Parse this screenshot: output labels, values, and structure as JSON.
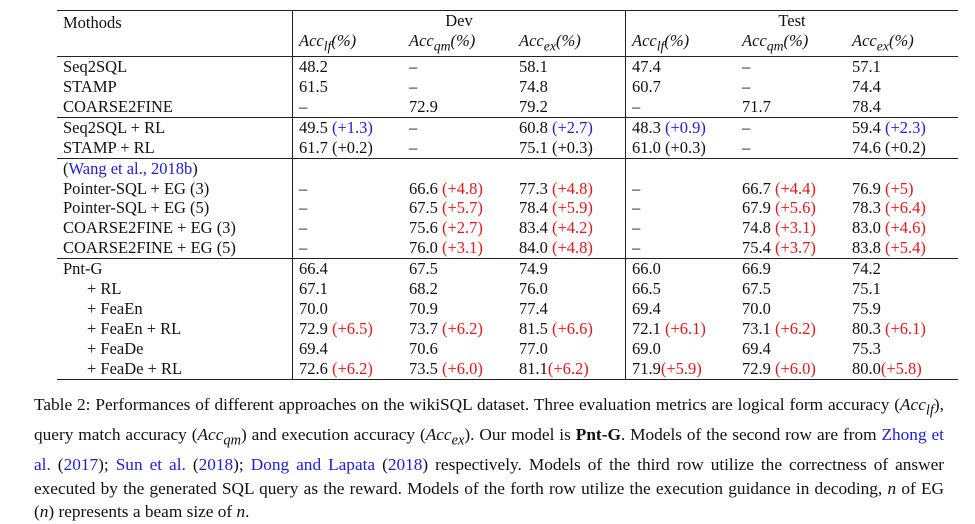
{
  "table": {
    "header": {
      "methods": "Mothods",
      "group_dev": "Dev",
      "group_test": "Test",
      "sub": [
        "Acc_lf(%)",
        "Acc_qm(%)",
        "Acc_ex(%)"
      ],
      "sub_parts": [
        {
          "base": "Acc",
          "sub": "lf",
          "suffix": "(%)"
        },
        {
          "base": "Acc",
          "sub": "qm",
          "suffix": "(%)"
        },
        {
          "base": "Acc",
          "sub": "ex",
          "suffix": "(%)"
        }
      ]
    },
    "rows": [
      {
        "method": "Seq2SQL",
        "cells": [
          {
            "v": "48.2"
          },
          {
            "v": "–"
          },
          {
            "v": "58.1"
          },
          {
            "v": "47.4"
          },
          {
            "v": "–"
          },
          {
            "v": "57.1"
          }
        ]
      },
      {
        "method": "STAMP",
        "cells": [
          {
            "v": "61.5"
          },
          {
            "v": "–"
          },
          {
            "v": "74.8"
          },
          {
            "v": "60.7"
          },
          {
            "v": "–"
          },
          {
            "v": "74.4"
          }
        ]
      },
      {
        "method": "COARSE2FINE",
        "cells": [
          {
            "v": "–"
          },
          {
            "v": "72.9"
          },
          {
            "v": "79.2"
          },
          {
            "v": "–"
          },
          {
            "v": "71.7"
          },
          {
            "v": "78.4"
          }
        ]
      },
      {
        "method": "Seq2SQL + RL",
        "sep": true,
        "cells": [
          {
            "v": "49.5 ",
            "d": "(+1.3)",
            "c": "blue"
          },
          {
            "v": "–"
          },
          {
            "v": "60.8 ",
            "d": "(+2.7)",
            "c": "blue"
          },
          {
            "v": "48.3 ",
            "d": "(+0.9)",
            "c": "blue"
          },
          {
            "v": "–"
          },
          {
            "v": "59.4 ",
            "d": "(+2.3)",
            "c": "blue"
          }
        ]
      },
      {
        "method": "STAMP + RL",
        "cells": [
          {
            "v": "61.7 (+0.2)"
          },
          {
            "v": "–"
          },
          {
            "v": "75.1 (+0.3)"
          },
          {
            "v": "61.0 (+0.3)"
          },
          {
            "v": "–"
          },
          {
            "v": "74.6 (+0.2)"
          }
        ]
      },
      {
        "method": "(",
        "cite": "Wang et al., 2018b",
        "method_after": ")",
        "sep": true,
        "cells": [
          {
            "v": ""
          },
          {
            "v": ""
          },
          {
            "v": ""
          },
          {
            "v": ""
          },
          {
            "v": ""
          },
          {
            "v": ""
          }
        ]
      },
      {
        "method": "Pointer-SQL + EG (3)",
        "cells": [
          {
            "v": "–"
          },
          {
            "v": "66.6 ",
            "d": "(+4.8)",
            "c": "red"
          },
          {
            "v": "77.3 ",
            "d": "(+4.8)",
            "c": "red"
          },
          {
            "v": "–"
          },
          {
            "v": "66.7 ",
            "d": "(+4.4)",
            "c": "red"
          },
          {
            "v": "76.9 ",
            "d": "(+5)",
            "c": "red"
          }
        ]
      },
      {
        "method": "Pointer-SQL + EG (5)",
        "cells": [
          {
            "v": "–"
          },
          {
            "v": "67.5 ",
            "d": "(+5.7)",
            "c": "red"
          },
          {
            "v": "78.4 ",
            "d": "(+5.9)",
            "c": "red"
          },
          {
            "v": "–"
          },
          {
            "v": "67.9 ",
            "d": "(+5.6)",
            "c": "red"
          },
          {
            "v": "78.3 ",
            "d": "(+6.4)",
            "c": "red"
          }
        ]
      },
      {
        "method": "COARSE2FINE + EG (3)",
        "cells": [
          {
            "v": "–"
          },
          {
            "v": "75.6 ",
            "d": "(+2.7)",
            "c": "red"
          },
          {
            "v": "83.4 ",
            "d": "(+4.2)",
            "c": "red"
          },
          {
            "v": "–"
          },
          {
            "v": "74.8 ",
            "d": "(+3.1)",
            "c": "red"
          },
          {
            "v": "83.0 ",
            "d": "(+4.6)",
            "c": "red"
          }
        ]
      },
      {
        "method": "COARSE2FINE + EG (5)",
        "cells": [
          {
            "v": "–"
          },
          {
            "v": "76.0 ",
            "d": "(+3.1)",
            "c": "red"
          },
          {
            "v": "84.0 ",
            "d": "(+4.8)",
            "c": "red"
          },
          {
            "v": "–"
          },
          {
            "v": "75.4 ",
            "d": "(+3.7)",
            "c": "red"
          },
          {
            "v": "83.8 ",
            "d": "(+5.4)",
            "c": "red"
          }
        ]
      },
      {
        "method": "Pnt-G",
        "sep": true,
        "cells": [
          {
            "v": "66.4"
          },
          {
            "v": "67.5"
          },
          {
            "v": "74.9"
          },
          {
            "v": "66.0"
          },
          {
            "v": "66.9"
          },
          {
            "v": "74.2"
          }
        ]
      },
      {
        "method": "+ RL",
        "indent": true,
        "cells": [
          {
            "v": "67.1"
          },
          {
            "v": "68.2"
          },
          {
            "v": "76.0"
          },
          {
            "v": "66.5"
          },
          {
            "v": "67.5"
          },
          {
            "v": "75.1"
          }
        ]
      },
      {
        "method": "+ FeaEn",
        "indent": true,
        "cells": [
          {
            "v": "70.0"
          },
          {
            "v": "70.9"
          },
          {
            "v": "77.4"
          },
          {
            "v": "69.4"
          },
          {
            "v": "70.0"
          },
          {
            "v": "75.9"
          }
        ]
      },
      {
        "method": "+ FeaEn + RL",
        "indent": true,
        "cells": [
          {
            "v": "72.9 ",
            "d": "(+6.5)",
            "c": "red"
          },
          {
            "v": "73.7 ",
            "d": "(+6.2)",
            "c": "red"
          },
          {
            "v": "81.5 ",
            "d": "(+6.6)",
            "c": "red"
          },
          {
            "v": "72.1 ",
            "d": "(+6.1)",
            "c": "red"
          },
          {
            "v": "73.1 ",
            "d": "(+6.2)",
            "c": "red"
          },
          {
            "v": "80.3 ",
            "d": "(+6.1)",
            "c": "red"
          }
        ]
      },
      {
        "method": "+ FeaDe",
        "indent": true,
        "cells": [
          {
            "v": "69.4"
          },
          {
            "v": "70.6"
          },
          {
            "v": "77.0"
          },
          {
            "v": "69.0"
          },
          {
            "v": "69.4"
          },
          {
            "v": "75.3"
          }
        ]
      },
      {
        "method": "+ FeaDe + RL",
        "indent": true,
        "cells": [
          {
            "v": "72.6 ",
            "d": "(+6.2)",
            "c": "red"
          },
          {
            "v": "73.5 ",
            "d": "(+6.0)",
            "c": "red"
          },
          {
            "v": "81.1",
            "d": "(+6.2)",
            "c": "red"
          },
          {
            "v": "71.9",
            "d": "(+5.9)",
            "c": "red"
          },
          {
            "v": "72.9 ",
            "d": "(+6.0)",
            "c": "red"
          },
          {
            "v": "80.0",
            "d": "(+5.8)",
            "c": "red"
          }
        ]
      }
    ]
  },
  "caption": {
    "p1": "Table 2: Performances of different approaches on the wikiSQL dataset. Three evaluation metrics are logical form accuracy (",
    "m1_base": "Acc",
    "m1_sub": "lf",
    "p2": "), query match accuracy (",
    "m2_base": "Acc",
    "m2_sub": "qm",
    "p3": ") and execution accuracy (",
    "m3_base": "Acc",
    "m3_sub": "ex",
    "p4": "). Our model is ",
    "model": "Pnt-G",
    "p5": ". Models of the second row are from ",
    "cite1": "Zhong et al.",
    "p6": " (",
    "cite1_year": "2017",
    "p7": "); ",
    "cite2": "Sun et al.",
    "p8": " (",
    "cite2_year": "2018",
    "p9": "); ",
    "cite3": "Dong and Lapata",
    "p10": " (",
    "cite3_year": "2018",
    "p11": ") respectively. Models of the third row utilize the correctness of answer executed by the generated SQL query as the reward. Models of the forth row utilize the execution guidance in decoding, ",
    "var_n": "n",
    "p12": " of EG (",
    "var_n2": "n",
    "p13": ") represents a beam size of ",
    "var_n3": "n",
    "p14": "."
  }
}
